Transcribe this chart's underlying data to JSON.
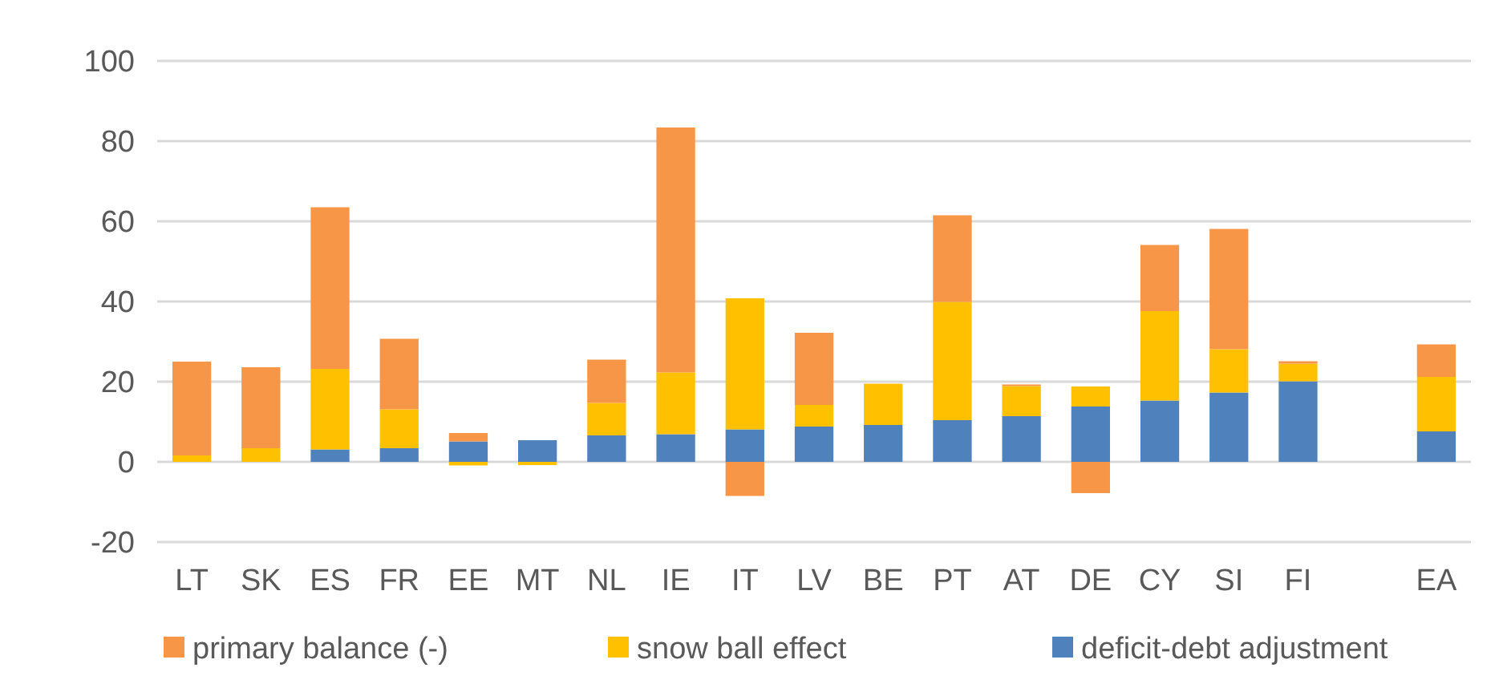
{
  "chart_data": {
    "type": "bar",
    "stacked": true,
    "categories": [
      "LT",
      "SK",
      "ES",
      "FR",
      "EE",
      "MT",
      "NL",
      "IE",
      "IT",
      "LV",
      "BE",
      "PT",
      "AT",
      "DE",
      "CY",
      "SI",
      "FI",
      null,
      "EA"
    ],
    "series": [
      {
        "name": "deficit-debt adjustment",
        "color": "#4f81bd",
        "values": [
          0,
          0,
          3.1,
          3.4,
          5.1,
          5.4,
          6.6,
          6.9,
          8.1,
          8.8,
          9.2,
          10.4,
          11.4,
          13.8,
          15.3,
          17.3,
          20.1,
          null,
          7.6
        ]
      },
      {
        "name": "snow ball effect",
        "color": "#ffc000",
        "values": [
          1.6,
          3.4,
          20.1,
          9.7,
          -0.9,
          -0.8,
          8.1,
          15.4,
          32.7,
          5.4,
          10.3,
          29.5,
          7.5,
          5.0,
          22.3,
          10.8,
          4.4,
          null,
          13.6
        ]
      },
      {
        "name": "primary balance (-)",
        "color": "#f79646",
        "values": [
          23.4,
          20.2,
          40.3,
          17.6,
          2.1,
          0,
          10.8,
          61.1,
          -8.5,
          18.0,
          0,
          21.6,
          0.4,
          -7.8,
          16.5,
          30.0,
          0.6,
          null,
          8.1
        ]
      }
    ],
    "ylim": [
      -20,
      100
    ],
    "yticks": [
      -20,
      0,
      20,
      40,
      60,
      80,
      100
    ],
    "grid": "y",
    "legend": "bottom"
  }
}
